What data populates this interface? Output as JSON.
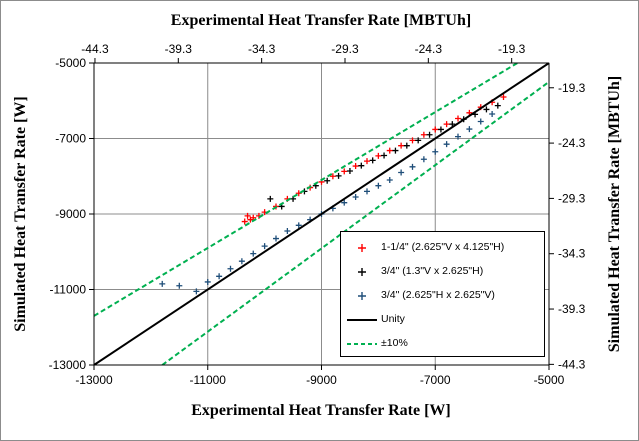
{
  "chart_data": {
    "type": "scatter",
    "title": "",
    "xlabel": "Experimental Heat Transfer Rate [W]",
    "ylabel": "Simulated Heat Transfer Rate [W]",
    "x2label": "Experimental Heat Transfer Rate [MBTUh]",
    "y2label": "Simulated Heat Transfer Rate [MBTUh]",
    "xlim": [
      -13000,
      -5000
    ],
    "ylim": [
      -13000,
      -5000
    ],
    "x_ticks": [
      "-13000",
      "-11000",
      "-9000",
      "-7000",
      "-5000"
    ],
    "y_ticks": [
      "-13000",
      "-11000",
      "-9000",
      "-7000",
      "-5000"
    ],
    "x2_ticks": [
      "-44.3",
      "-39.3",
      "-34.3",
      "-29.3",
      "-24.3",
      "-19.3"
    ],
    "y2_ticks": [
      "-44.3",
      "-39.3",
      "-34.3",
      "-29.3",
      "-24.3",
      "-19.3"
    ],
    "grid": true,
    "legend_position": "bottom-right",
    "series": [
      {
        "name": "1-1/4\" (2.625\"V x 4.125\"H)",
        "color": "#ff0000",
        "marker": "plus",
        "points": [
          [
            -10350,
            -9200
          ],
          [
            -10300,
            -9050
          ],
          [
            -10250,
            -9150
          ],
          [
            -10200,
            -9100
          ],
          [
            -10100,
            -9050
          ],
          [
            -10000,
            -8950
          ],
          [
            -9800,
            -8800
          ],
          [
            -9600,
            -8600
          ],
          [
            -9400,
            -8450
          ],
          [
            -9200,
            -8300
          ],
          [
            -9000,
            -8150
          ],
          [
            -8800,
            -8000
          ],
          [
            -8600,
            -7870
          ],
          [
            -8400,
            -7730
          ],
          [
            -8200,
            -7600
          ],
          [
            -8000,
            -7460
          ],
          [
            -7800,
            -7320
          ],
          [
            -7600,
            -7190
          ],
          [
            -7400,
            -7050
          ],
          [
            -7200,
            -6900
          ],
          [
            -7000,
            -6760
          ],
          [
            -6800,
            -6620
          ],
          [
            -6600,
            -6470
          ],
          [
            -6400,
            -6320
          ],
          [
            -6200,
            -6170
          ],
          [
            -6000,
            -6040
          ],
          [
            -5800,
            -5900
          ]
        ]
      },
      {
        "name": "3/4\" (1.3\"V x 2.625\"H)",
        "color": "#000000",
        "marker": "plus",
        "points": [
          [
            -9900,
            -8600
          ],
          [
            -9700,
            -8800
          ],
          [
            -9500,
            -8600
          ],
          [
            -9300,
            -8400
          ],
          [
            -9100,
            -8250
          ],
          [
            -8900,
            -8120
          ],
          [
            -8700,
            -7990
          ],
          [
            -8500,
            -7860
          ],
          [
            -8300,
            -7720
          ],
          [
            -8100,
            -7580
          ],
          [
            -7900,
            -7450
          ],
          [
            -7700,
            -7320
          ],
          [
            -7500,
            -7190
          ],
          [
            -7300,
            -7050
          ],
          [
            -7100,
            -6900
          ],
          [
            -6900,
            -6760
          ],
          [
            -6700,
            -6620
          ],
          [
            -6500,
            -6490
          ],
          [
            -6300,
            -6360
          ],
          [
            -6100,
            -6230
          ],
          [
            -5900,
            -6130
          ]
        ]
      },
      {
        "name": "3/4\" (2.625\"H x 2.625\"V)",
        "color": "#1f4e79",
        "marker": "plus",
        "points": [
          [
            -11800,
            -10850
          ],
          [
            -11500,
            -10900
          ],
          [
            -11200,
            -11050
          ],
          [
            -11000,
            -10800
          ],
          [
            -10800,
            -10650
          ],
          [
            -10600,
            -10450
          ],
          [
            -10400,
            -10250
          ],
          [
            -10200,
            -10050
          ],
          [
            -10000,
            -9850
          ],
          [
            -9800,
            -9650
          ],
          [
            -9600,
            -9450
          ],
          [
            -9400,
            -9300
          ],
          [
            -9200,
            -9150
          ],
          [
            -9000,
            -9000
          ],
          [
            -8800,
            -8850
          ],
          [
            -8600,
            -8700
          ],
          [
            -8400,
            -8550
          ],
          [
            -8200,
            -8400
          ],
          [
            -8000,
            -8250
          ],
          [
            -7800,
            -8100
          ],
          [
            -7600,
            -7900
          ],
          [
            -7400,
            -7750
          ],
          [
            -7200,
            -7550
          ],
          [
            -7000,
            -7350
          ],
          [
            -6800,
            -7150
          ],
          [
            -6600,
            -6950
          ],
          [
            -6400,
            -6750
          ],
          [
            -6200,
            -6550
          ],
          [
            -6000,
            -6350
          ]
        ]
      },
      {
        "name": "Unity",
        "color": "#000000",
        "marker": "line",
        "points": [
          [
            -13000,
            -13000
          ],
          [
            -5000,
            -5000
          ]
        ]
      },
      {
        "name": "±10%",
        "color": "#00b050",
        "marker": "dashed-line",
        "lines": [
          [
            [
              -13000,
              -11700
            ],
            [
              -5500,
              -4950
            ]
          ],
          [
            [
              -11800,
              -13000
            ],
            [
              -5000,
              -5500
            ]
          ]
        ]
      }
    ]
  }
}
